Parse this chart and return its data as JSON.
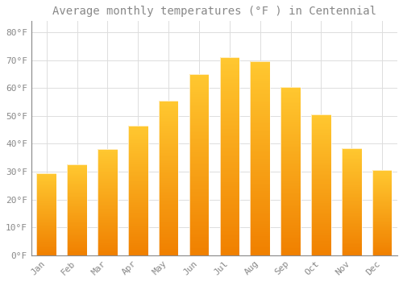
{
  "title": "Average monthly temperatures (°F ) in Centennial",
  "months": [
    "Jan",
    "Feb",
    "Mar",
    "Apr",
    "May",
    "Jun",
    "Jul",
    "Aug",
    "Sep",
    "Oct",
    "Nov",
    "Dec"
  ],
  "values": [
    29.5,
    32.5,
    38.0,
    46.5,
    55.5,
    65.0,
    71.0,
    69.5,
    60.5,
    50.5,
    38.5,
    30.5
  ],
  "bar_color_top": "#FFC020",
  "bar_color_bottom": "#F08000",
  "background_color": "#FFFFFF",
  "grid_color": "#DDDDDD",
  "text_color": "#888888",
  "spine_color": "#888888",
  "ylim": [
    0,
    84
  ],
  "yticks": [
    0,
    10,
    20,
    30,
    40,
    50,
    60,
    70,
    80
  ],
  "title_fontsize": 10,
  "tick_fontsize": 8,
  "bar_width": 0.65
}
